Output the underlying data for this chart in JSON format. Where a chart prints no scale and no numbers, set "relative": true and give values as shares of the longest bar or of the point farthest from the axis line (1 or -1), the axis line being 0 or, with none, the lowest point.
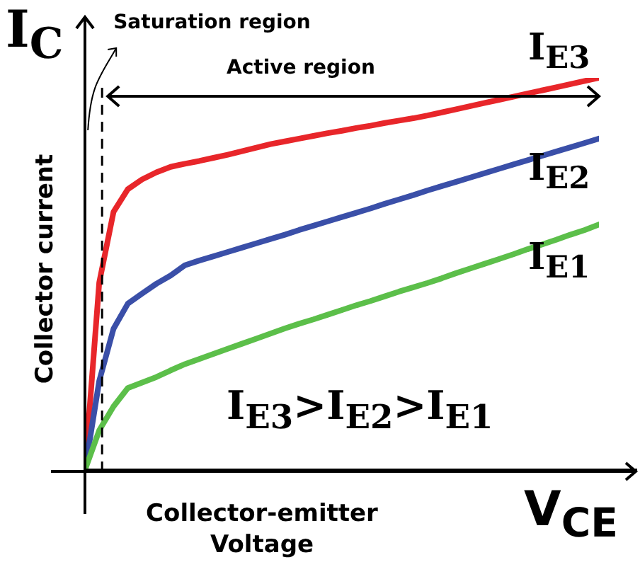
{
  "chart_data": {
    "type": "line",
    "relative": true,
    "ylabel": "Collector current",
    "xlabel": "Collector-emitter Voltage",
    "marker": "none",
    "line_style": "solid",
    "categories": [
      null,
      null,
      null,
      null,
      null,
      null,
      null,
      null,
      null,
      null,
      null,
      null,
      null,
      null,
      null,
      null,
      null,
      null,
      null,
      null,
      null,
      null,
      null,
      null,
      null,
      null,
      null,
      null,
      null,
      null,
      null,
      null,
      null,
      null,
      null,
      null,
      null
    ],
    "series": [
      {
        "name": "I$_{E3}$",
        "color": "#e8262a",
        "values": [
          0,
          0.478,
          0.658,
          0.716,
          0.741,
          0.759,
          0.773,
          0.781,
          0.788,
          0.796,
          0.804,
          0.813,
          0.822,
          0.831,
          0.838,
          0.845,
          0.852,
          0.859,
          0.865,
          0.872,
          0.878,
          0.885,
          0.891,
          0.897,
          0.904,
          0.912,
          0.92,
          0.928,
          0.936,
          0.944,
          0.952,
          0.96,
          0.968,
          0.976,
          0.984,
          0.992,
          1
        ]
      },
      {
        "name": "I$_{E2}$",
        "color": "#3a4fa8",
        "values": [
          0,
          0.227,
          0.36,
          0.424,
          0.45,
          0.475,
          0.496,
          0.522,
          0.534,
          0.545,
          0.556,
          0.567,
          0.578,
          0.589,
          0.6,
          0.612,
          0.623,
          0.634,
          0.645,
          0.656,
          0.667,
          0.679,
          0.69,
          0.701,
          0.713,
          0.724,
          0.735,
          0.746,
          0.757,
          0.768,
          0.779,
          0.79,
          0.801,
          0.812,
          0.823,
          0.834,
          0.845
        ]
      },
      {
        "name": "I$_{E1}$",
        "color": "#5cbf4a",
        "values": [
          0,
          0.101,
          0.162,
          0.209,
          0.223,
          0.237,
          0.254,
          0.27,
          0.283,
          0.296,
          0.309,
          0.322,
          0.335,
          0.348,
          0.361,
          0.373,
          0.384,
          0.396,
          0.408,
          0.42,
          0.431,
          0.443,
          0.455,
          0.466,
          0.477,
          0.489,
          0.502,
          0.514,
          0.526,
          0.538,
          0.55,
          0.563,
          0.575,
          0.587,
          0.6,
          0.612,
          0.626
        ]
      }
    ],
    "annotations": [
      "I$_{C}$",
      "V$_{CE}$",
      "Saturation region",
      "Active region",
      "I$_{E3}$>I$_{E2}$>I$_{E1}$"
    ]
  }
}
